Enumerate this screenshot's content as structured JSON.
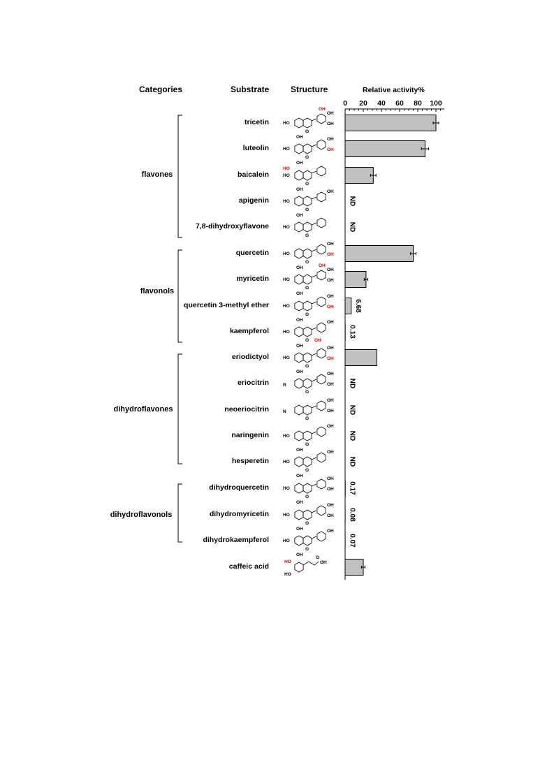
{
  "headers": {
    "categories": "Categories",
    "substrate": "Substrate",
    "structure": "Structure",
    "activity": "Relative activity%"
  },
  "categories": [
    "flavones",
    "flavonols",
    "dihydroflavones",
    "dihydroflavonols"
  ],
  "chart_data": {
    "type": "bar",
    "orientation": "horizontal",
    "xlabel": "Relative activity%",
    "xlim": [
      0,
      100
    ],
    "xticks": [
      "0",
      "20",
      "40",
      "60",
      "80",
      "100"
    ],
    "categories": [
      "tricetin",
      "luteolin",
      "baicalein",
      "apigenin",
      "7,8-dihydroxyflavone",
      "quercetin",
      "myricetin",
      "quercetin 3-methyl ether",
      "kaempferol",
      "eriodictyol",
      "eriocitrin",
      "neoeriocitrin",
      "naringenin",
      "hesperetin",
      "dihydroquercetin",
      "dihydromyricetin",
      "dihydrokaempferol",
      "caffeic acid"
    ],
    "values": [
      100,
      88,
      31,
      0,
      0,
      75,
      23,
      6.68,
      0.13,
      35,
      0,
      0,
      0,
      0,
      0.17,
      0.08,
      0.07,
      20
    ],
    "errors": [
      1.5,
      2,
      1.5,
      0,
      0,
      1.5,
      1,
      0,
      0,
      0,
      0,
      0,
      0,
      0,
      0,
      0,
      0,
      1
    ],
    "labels": [
      "",
      "",
      "",
      "ND",
      "ND",
      "",
      "",
      "6.68",
      "0.13",
      "",
      "ND",
      "ND",
      "ND",
      "ND",
      "0.17",
      "0.08",
      "0.07",
      ""
    ],
    "bar_color": "#c0c0c0",
    "grid": false
  },
  "structure_labels": {
    "oh": "OH",
    "ho": "HO",
    "o": "O",
    "r": "R",
    "n": "N"
  },
  "highlight_color": "#e00000"
}
